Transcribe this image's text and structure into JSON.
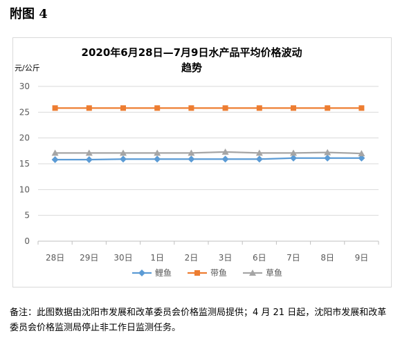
{
  "figure_label": "附图 4",
  "chart_data": {
    "type": "line",
    "title_line1": "2020年6月28日—7月9日水产品平均价格波动",
    "title_line2": "趋势",
    "ylabel": "元/公斤",
    "xlabel": "",
    "categories": [
      "28日",
      "29日",
      "30日",
      "1日",
      "2日",
      "3日",
      "6日",
      "7日",
      "8日",
      "9日"
    ],
    "ylim": [
      0,
      30
    ],
    "yticks": [
      0,
      5,
      10,
      15,
      20,
      25,
      30
    ],
    "grid": true,
    "legend_position": "bottom",
    "series": [
      {
        "name": "鲤鱼",
        "color": "#5b9bd5",
        "marker": "diamond",
        "values": [
          15.8,
          15.8,
          15.9,
          15.9,
          15.9,
          15.9,
          15.9,
          16.1,
          16.1,
          16.1
        ]
      },
      {
        "name": "带鱼",
        "color": "#ed7d31",
        "marker": "square",
        "values": [
          25.8,
          25.8,
          25.8,
          25.8,
          25.8,
          25.8,
          25.8,
          25.8,
          25.8,
          25.8
        ]
      },
      {
        "name": "草鱼",
        "color": "#a5a5a5",
        "marker": "triangle",
        "values": [
          17.1,
          17.1,
          17.1,
          17.1,
          17.1,
          17.3,
          17.1,
          17.1,
          17.2,
          17.0
        ]
      }
    ]
  },
  "note": "备注：此图数据由沈阳市发展和改革委员会价格监测局提供；4 月 21 日起，沈阳市发展和改革委员会价格监测局停止非工作日监测任务。"
}
